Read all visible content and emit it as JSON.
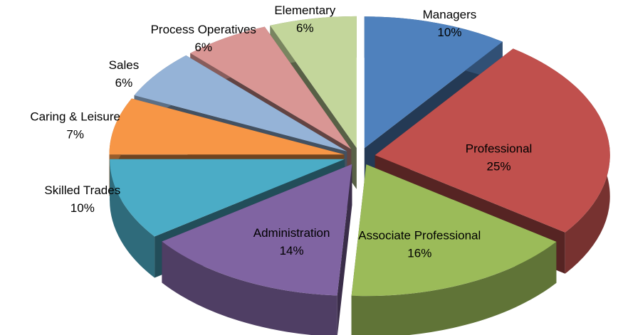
{
  "chart_data": {
    "type": "pie",
    "categories": [
      "Managers",
      "Professional",
      "Associate Professional",
      "Administration",
      "Skilled Trades",
      "Caring & Leisure",
      "Sales",
      "Process Operatives",
      "Elementary"
    ],
    "values": [
      10,
      25,
      16,
      14,
      10,
      7,
      6,
      6,
      6
    ],
    "value_labels": [
      "10%",
      "25%",
      "16%",
      "14%",
      "10%",
      "7%",
      "6%",
      "6%",
      "6%"
    ],
    "colors": [
      "#4f81bd",
      "#c0504d",
      "#9bbb59",
      "#8064a2",
      "#4bacc6",
      "#f79646",
      "#95b3d7",
      "#d99694",
      "#c3d69b"
    ]
  }
}
